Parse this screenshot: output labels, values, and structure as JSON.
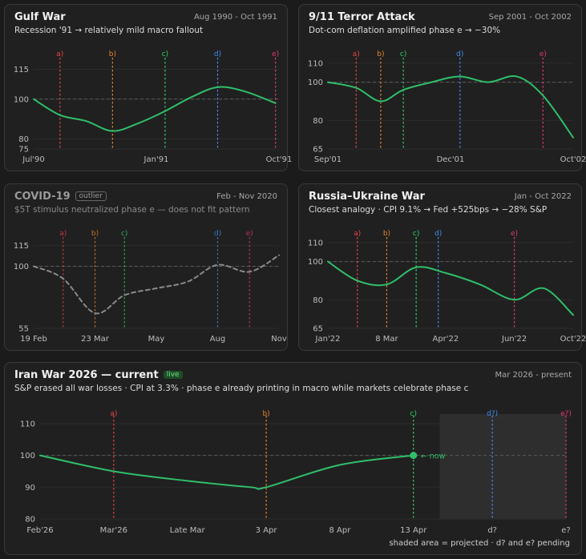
{
  "colors": {
    "a": "#e8454a",
    "b": "#e8852a",
    "c": "#2fd06a",
    "d": "#3f8ef0",
    "e": "#e03a6a",
    "line": "#2fbf6a",
    "dim_line": "#8a8a8a",
    "grid_ref": "#5a5a5a"
  },
  "chart_data": [
    {
      "type": "line",
      "title": "Gulf War",
      "date_range": "Aug 1990 - Oct 1991",
      "subtitle": "Recession '91 → relatively mild macro fallout",
      "ylim": [
        75,
        120
      ],
      "yticks": [
        75,
        80,
        100,
        115
      ],
      "reference": 100,
      "xlim": [
        0,
        14
      ],
      "xticks": [
        {
          "x": 0,
          "label": "Jul'90"
        },
        {
          "x": 7,
          "label": "Jan'91"
        },
        {
          "x": 14,
          "label": "Oct'91"
        }
      ],
      "phases": [
        {
          "label": "a)",
          "key": "a",
          "x": 1.5
        },
        {
          "label": "b)",
          "key": "b",
          "x": 4.5
        },
        {
          "label": "c)",
          "key": "c",
          "x": 7.5
        },
        {
          "label": "d)",
          "key": "d",
          "x": 10.5
        },
        {
          "label": "e)",
          "key": "e",
          "x": 13.8
        }
      ],
      "x": [
        0,
        1.5,
        3,
        4.5,
        6,
        7.5,
        9,
        10.5,
        12,
        13.8
      ],
      "values": [
        100,
        92,
        89,
        84,
        88,
        94,
        101,
        106,
        104,
        98
      ]
    },
    {
      "type": "line",
      "title": "9/11 Terror Attack",
      "date_range": "Sep 2001 - Oct 2002",
      "subtitle": "Dot-com deflation amplified phase e → −30%",
      "ylim": [
        65,
        112
      ],
      "yticks": [
        65,
        80,
        100,
        110
      ],
      "reference": 100,
      "xlim": [
        0,
        13
      ],
      "xticks": [
        {
          "x": 0,
          "label": "Sep'01"
        },
        {
          "x": 6.5,
          "label": "Dec'01"
        },
        {
          "x": 13,
          "label": "Oct'02"
        }
      ],
      "phases": [
        {
          "label": "a)",
          "key": "a",
          "x": 1.5
        },
        {
          "label": "b)",
          "key": "b",
          "x": 2.8
        },
        {
          "label": "c)",
          "key": "c",
          "x": 4
        },
        {
          "label": "d)",
          "key": "d",
          "x": 7
        },
        {
          "label": "e)",
          "key": "e",
          "x": 11.4
        }
      ],
      "x": [
        0,
        1.5,
        2.8,
        4,
        5.5,
        7,
        8.5,
        10,
        11.4,
        13
      ],
      "values": [
        100,
        97,
        90,
        96,
        100,
        103,
        100,
        103,
        93,
        71
      ]
    },
    {
      "type": "line",
      "title": "COVID-19",
      "badge": "outlier",
      "date_range": "Feb - Nov 2020",
      "subtitle": "$5T stimulus neutralized phase e — does not fit pattern",
      "dashed": true,
      "ylim": [
        55,
        120
      ],
      "yticks": [
        55,
        100,
        115
      ],
      "reference": 100,
      "xlim": [
        0,
        10
      ],
      "xticks": [
        {
          "x": 0,
          "label": "19 Feb"
        },
        {
          "x": 2.5,
          "label": "23 Mar"
        },
        {
          "x": 5,
          "label": "May"
        },
        {
          "x": 7.5,
          "label": "Aug"
        },
        {
          "x": 10,
          "label": "Nov"
        }
      ],
      "phases": [
        {
          "label": "a)",
          "key": "a",
          "x": 1.2
        },
        {
          "label": "b)",
          "key": "b",
          "x": 2.5
        },
        {
          "label": "c)",
          "key": "c",
          "x": 3.7
        },
        {
          "label": "d)",
          "key": "d",
          "x": 7.5
        },
        {
          "label": "e)",
          "key": "e",
          "x": 8.8
        }
      ],
      "x": [
        0,
        1.2,
        2.5,
        3.7,
        5,
        6.3,
        7.5,
        8.8,
        10
      ],
      "values": [
        100,
        91,
        66,
        79,
        84,
        89,
        101,
        96,
        108
      ]
    },
    {
      "type": "line",
      "title": "Russia–Ukraine War",
      "date_range": "Jan - Oct 2022",
      "subtitle": "Closest analogy · CPI 9.1% → Fed +525bps → −28% S&P",
      "ylim": [
        65,
        112
      ],
      "yticks": [
        65,
        80,
        100,
        110
      ],
      "reference": 100,
      "xlim": [
        0,
        10
      ],
      "xticks": [
        {
          "x": 0,
          "label": "Jan'22"
        },
        {
          "x": 2.4,
          "label": "8 Mar"
        },
        {
          "x": 4.8,
          "label": "Apr'22"
        },
        {
          "x": 7.6,
          "label": "Jun'22"
        },
        {
          "x": 10,
          "label": "Oct'22"
        }
      ],
      "phases": [
        {
          "label": "a)",
          "key": "a",
          "x": 1.2
        },
        {
          "label": "b)",
          "key": "b",
          "x": 2.4
        },
        {
          "label": "c)",
          "key": "c",
          "x": 3.6
        },
        {
          "label": "d)",
          "key": "d",
          "x": 4.5
        },
        {
          "label": "e)",
          "key": "e",
          "x": 7.6
        }
      ],
      "x": [
        0,
        1.2,
        2.4,
        3.6,
        4.8,
        6.2,
        7.6,
        8.8,
        10
      ],
      "values": [
        100,
        90,
        88,
        97,
        94,
        88,
        80,
        86,
        72
      ]
    },
    {
      "type": "line",
      "title": "Iran War 2026 — current",
      "badge": "live",
      "date_range": "Mar 2026 - present",
      "subtitle": "S&P erased all war losses · CPI at 3.3% · phase e already printing in macro while markets celebrate phase c",
      "ylim": [
        80,
        112
      ],
      "yticks": [
        80,
        90,
        100,
        110
      ],
      "reference": 100,
      "xlim": [
        0,
        10
      ],
      "xticks": [
        {
          "x": 0,
          "label": "Feb'26"
        },
        {
          "x": 1.4,
          "label": "Mar'26"
        },
        {
          "x": 2.8,
          "label": "Late Mar"
        },
        {
          "x": 4.3,
          "label": "3 Apr"
        },
        {
          "x": 5.7,
          "label": "8 Apr"
        },
        {
          "x": 7.1,
          "label": "13 Apr"
        },
        {
          "x": 8.6,
          "label": "d?"
        },
        {
          "x": 10,
          "label": "e?"
        }
      ],
      "phases": [
        {
          "label": "a)",
          "key": "a",
          "x": 1.4
        },
        {
          "label": "b)",
          "key": "b",
          "x": 4.3
        },
        {
          "label": "c)",
          "key": "c",
          "x": 7.1
        },
        {
          "label": "d?)",
          "key": "d",
          "x": 8.6
        },
        {
          "label": "e?)",
          "key": "e",
          "x": 10
        }
      ],
      "x": [
        0,
        1.4,
        2.8,
        4,
        4.3,
        5.7,
        7.1
      ],
      "values": [
        100,
        95,
        92,
        90,
        90,
        97,
        100
      ],
      "now_label": "← now",
      "projected_from": 7.6,
      "footnote": "shaded area = projected · d? and e? pending"
    }
  ]
}
